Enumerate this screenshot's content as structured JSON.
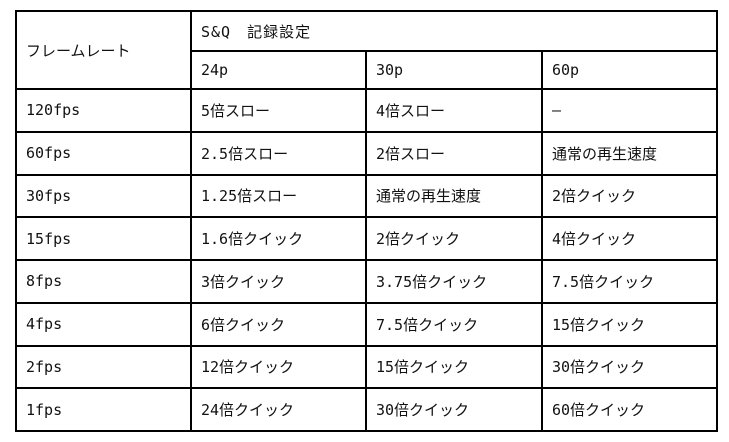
{
  "page": {
    "background_color": "#ffffff",
    "border_color": "#000000",
    "text_color": "#111111"
  },
  "table": {
    "corner_header": "フレームレート",
    "group_header": "S&Q　記録設定",
    "col_headers": [
      "24p",
      "30p",
      "60p"
    ],
    "rows": [
      {
        "frame_rate": "120fps",
        "values": [
          "5倍スロー",
          "4倍スロー",
          "—"
        ]
      },
      {
        "frame_rate": "60fps",
        "values": [
          "2.5倍スロー",
          "2倍スロー",
          "通常の再生速度"
        ]
      },
      {
        "frame_rate": "30fps",
        "values": [
          "1.25倍スロー",
          "通常の再生速度",
          "2倍クイック"
        ]
      },
      {
        "frame_rate": "15fps",
        "values": [
          "1.6倍クイック",
          "2倍クイック",
          "4倍クイック"
        ]
      },
      {
        "frame_rate": "8fps",
        "values": [
          "3倍クイック",
          "3.75倍クイック",
          "7.5倍クイック"
        ]
      },
      {
        "frame_rate": "4fps",
        "values": [
          "6倍クイック",
          "7.5倍クイック",
          "15倍クイック"
        ]
      },
      {
        "frame_rate": "2fps",
        "values": [
          "12倍クイック",
          "15倍クイック",
          "30倍クイック"
        ]
      },
      {
        "frame_rate": "1fps",
        "values": [
          "24倍クイック",
          "30倍クイック",
          "60倍クイック"
        ]
      }
    ]
  }
}
